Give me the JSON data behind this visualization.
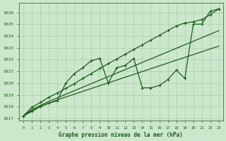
{
  "xlabel": "Graphe pression niveau de la mer (hPa)",
  "ylim": [
    1016.8,
    1026.8
  ],
  "xlim": [
    -0.5,
    23.5
  ],
  "yticks": [
    1017,
    1018,
    1019,
    1020,
    1021,
    1022,
    1023,
    1024,
    1025,
    1026
  ],
  "xticks": [
    0,
    1,
    2,
    3,
    4,
    5,
    6,
    7,
    8,
    9,
    10,
    11,
    12,
    13,
    14,
    15,
    16,
    17,
    18,
    19,
    20,
    21,
    22,
    23
  ],
  "bg_color": "#cce8cc",
  "grid_color": "#aaccaa",
  "line_color": "#1a5c1a",
  "spiky": [
    1017.2,
    1017.6,
    1018.0,
    1018.3,
    1018.5,
    1020.0,
    1020.8,
    1021.3,
    1021.9,
    1022.1,
    1020.0,
    1021.3,
    1021.5,
    1022.1,
    1019.6,
    1019.6,
    1019.8,
    1020.3,
    1021.1,
    1020.4,
    1025.0,
    1025.0,
    1026.1,
    1026.3
  ],
  "upper": [
    1017.2,
    1017.95,
    1018.35,
    1018.8,
    1019.15,
    1019.55,
    1019.95,
    1020.4,
    1020.8,
    1021.25,
    1021.65,
    1022.05,
    1022.45,
    1022.85,
    1023.25,
    1023.65,
    1024.05,
    1024.45,
    1024.85,
    1025.1,
    1025.2,
    1025.4,
    1025.8,
    1026.3
  ],
  "mid": [
    1017.2,
    1017.75,
    1018.1,
    1018.45,
    1018.75,
    1019.05,
    1019.35,
    1019.65,
    1019.95,
    1020.25,
    1020.55,
    1020.85,
    1021.15,
    1021.45,
    1021.75,
    1022.05,
    1022.35,
    1022.65,
    1022.95,
    1023.25,
    1023.55,
    1023.85,
    1024.15,
    1024.45
  ],
  "lower": [
    1017.2,
    1017.65,
    1018.0,
    1018.3,
    1018.58,
    1018.82,
    1019.06,
    1019.3,
    1019.54,
    1019.78,
    1020.02,
    1020.26,
    1020.5,
    1020.74,
    1020.98,
    1021.22,
    1021.46,
    1021.7,
    1021.94,
    1022.18,
    1022.42,
    1022.66,
    1022.9,
    1023.14
  ]
}
